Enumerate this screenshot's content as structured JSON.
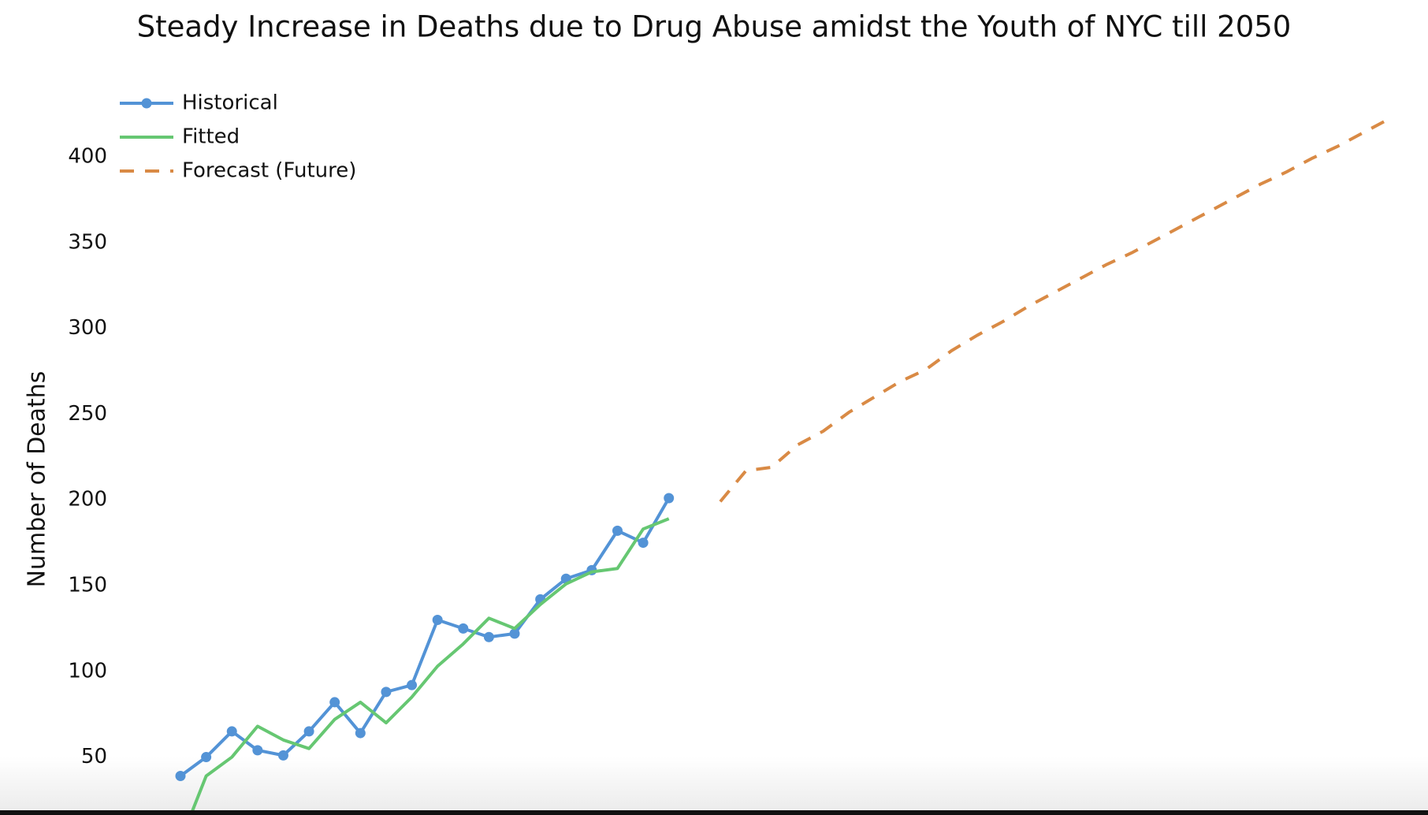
{
  "chart_data": {
    "type": "line",
    "title": "Steady Increase in Deaths due to Drug Abuse amidst the Youth of NYC till 2050",
    "y_label": "Number of Deaths",
    "categories": [
      null,
      null,
      null,
      null,
      null,
      null,
      null,
      null,
      null,
      null,
      null,
      null,
      null,
      null,
      null,
      null,
      null,
      null,
      null,
      null,
      null,
      null,
      null,
      null,
      null,
      null,
      null,
      null,
      null,
      null,
      null,
      null,
      null,
      null,
      null,
      null,
      null,
      null,
      null,
      null,
      null,
      null,
      null,
      null,
      null,
      null,
      null,
      null
    ],
    "series": [
      {
        "name": "Historical",
        "color": "#5393d6",
        "markers": true,
        "style": "solid",
        "values": [
          39,
          50,
          65,
          54,
          51,
          65,
          82,
          64,
          88,
          92,
          130,
          125,
          120,
          122,
          142,
          154,
          159,
          182,
          175,
          201,
          null,
          null,
          null,
          null,
          null,
          null,
          null,
          null,
          null,
          null,
          null,
          null,
          null,
          null,
          null,
          null,
          null,
          null,
          null,
          null,
          null,
          null,
          null,
          null,
          null,
          null,
          null,
          null
        ]
      },
      {
        "name": "Fitted",
        "color": "#66c772",
        "markers": false,
        "style": "solid",
        "values": [
          1,
          39,
          50,
          68,
          60,
          55,
          72,
          82,
          70,
          85,
          103,
          116,
          131,
          125,
          139,
          151,
          158,
          160,
          183,
          189,
          null,
          null,
          null,
          null,
          null,
          null,
          null,
          null,
          null,
          null,
          null,
          null,
          null,
          null,
          null,
          null,
          null,
          null,
          null,
          null,
          null,
          null,
          null,
          null,
          null,
          null,
          null,
          null
        ]
      },
      {
        "name": "Forecast (Future)",
        "color": "#d98a45",
        "markers": false,
        "style": "dashed",
        "values": [
          null,
          null,
          null,
          null,
          null,
          null,
          null,
          null,
          null,
          null,
          null,
          null,
          null,
          null,
          null,
          null,
          null,
          null,
          null,
          null,
          null,
          199,
          217,
          219,
          232,
          240,
          251,
          260,
          269,
          276,
          287,
          296,
          304,
          313,
          321,
          329,
          337,
          344,
          352,
          360,
          368,
          376,
          384,
          391,
          399,
          406,
          414,
          422
        ]
      }
    ],
    "ylim": [
      19,
      440
    ],
    "yticks": [
      50,
      100,
      150,
      200,
      250,
      300,
      350,
      400
    ],
    "grid": false,
    "legend": "upper left"
  }
}
